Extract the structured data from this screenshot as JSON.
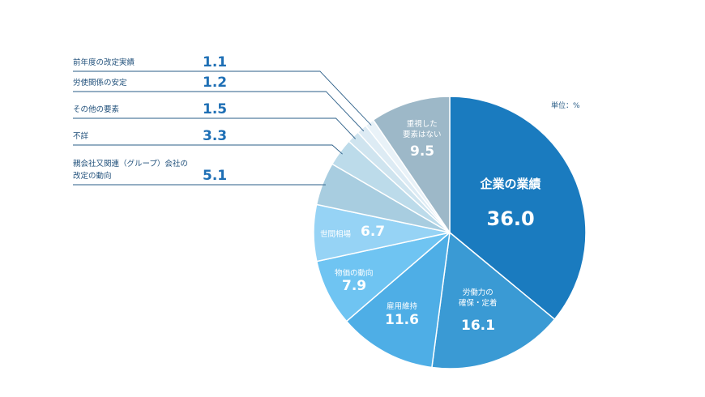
{
  "unit_label": "単位：%",
  "chart_data": {
    "type": "pie",
    "slices": [
      {
        "label": "企業の業績",
        "value": 36.0,
        "color": "#1a7bbf"
      },
      {
        "label": "労働力の\n確保・定着",
        "value": 16.1,
        "color": "#3a9ad4"
      },
      {
        "label": "雇用維持",
        "value": 11.6,
        "color": "#4eaee6"
      },
      {
        "label": "物価の動向",
        "value": 7.9,
        "color": "#6fc4f2"
      },
      {
        "label": "世間相場",
        "value": 6.7,
        "color": "#96d3f5"
      },
      {
        "label": "親会社又関連（グループ）会社の\n改定の動向",
        "value": 5.1,
        "color": "#a8cde0"
      },
      {
        "label": "不詳",
        "value": 3.3,
        "color": "#bcdbea"
      },
      {
        "label": "その他の要素",
        "value": 1.5,
        "color": "#cfe4ef"
      },
      {
        "label": "労使関係の安定",
        "value": 1.2,
        "color": "#ddebf4"
      },
      {
        "label": "前年度の改定実績",
        "value": 1.1,
        "color": "#e9f2f8"
      },
      {
        "label": "重視した\n要素はない",
        "value": 9.5,
        "color": "#9db8c8"
      }
    ]
  }
}
